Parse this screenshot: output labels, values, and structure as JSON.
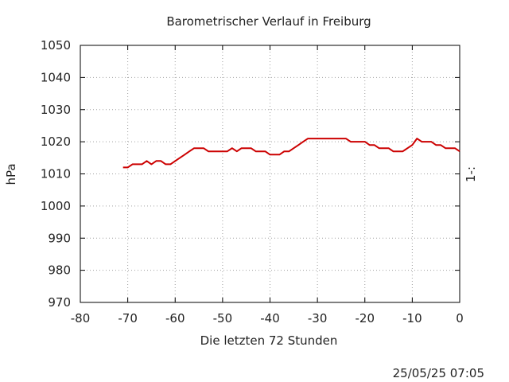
{
  "chart_data": {
    "type": "line",
    "title": "Barometrischer Verlauf in Freiburg",
    "xlabel": "Die letzten 72 Stunden",
    "ylabel": "hPa",
    "y2label": "1-:",
    "timestamp": "25/05/25 07:05",
    "xlim": [
      -80,
      0
    ],
    "ylim": [
      970,
      1050
    ],
    "xticks": [
      -80,
      -70,
      -60,
      -50,
      -40,
      -30,
      -20,
      -10,
      0
    ],
    "yticks": [
      970,
      980,
      990,
      1000,
      1010,
      1020,
      1030,
      1040,
      1050
    ],
    "grid": true,
    "line_color": "#cc0000",
    "series": [
      {
        "x": [
          -71,
          -70,
          -69,
          -68,
          -67,
          -66,
          -65,
          -64,
          -63,
          -62,
          -61,
          -60,
          -59,
          -58,
          -57,
          -56,
          -55,
          -54,
          -53,
          -52,
          -51,
          -50,
          -49,
          -48,
          -47,
          -46,
          -45,
          -44,
          -43,
          -42,
          -41,
          -40,
          -39,
          -38,
          -37,
          -36,
          -35,
          -34,
          -33,
          -32,
          -31,
          -30,
          -29,
          -28,
          -27,
          -26,
          -25,
          -24,
          -23,
          -22,
          -21,
          -20,
          -19,
          -18,
          -17,
          -16,
          -15,
          -14,
          -13,
          -12,
          -11,
          -10,
          -9,
          -8,
          -7,
          -6,
          -5,
          -4,
          -3,
          -2,
          -1,
          0
        ],
        "y": [
          1012,
          1012,
          1013,
          1013,
          1013,
          1014,
          1013,
          1014,
          1014,
          1013,
          1013,
          1014,
          1015,
          1016,
          1017,
          1018,
          1018,
          1018,
          1017,
          1017,
          1017,
          1017,
          1017,
          1018,
          1017,
          1018,
          1018,
          1018,
          1017,
          1017,
          1017,
          1016,
          1016,
          1016,
          1017,
          1017,
          1018,
          1019,
          1020,
          1021,
          1021,
          1021,
          1021,
          1021,
          1021,
          1021,
          1021,
          1021,
          1020,
          1020,
          1020,
          1020,
          1019,
          1019,
          1018,
          1018,
          1018,
          1017,
          1017,
          1017,
          1018,
          1019,
          1021,
          1020,
          1020,
          1020,
          1019,
          1019,
          1018,
          1018,
          1018,
          1017
        ]
      }
    ]
  }
}
